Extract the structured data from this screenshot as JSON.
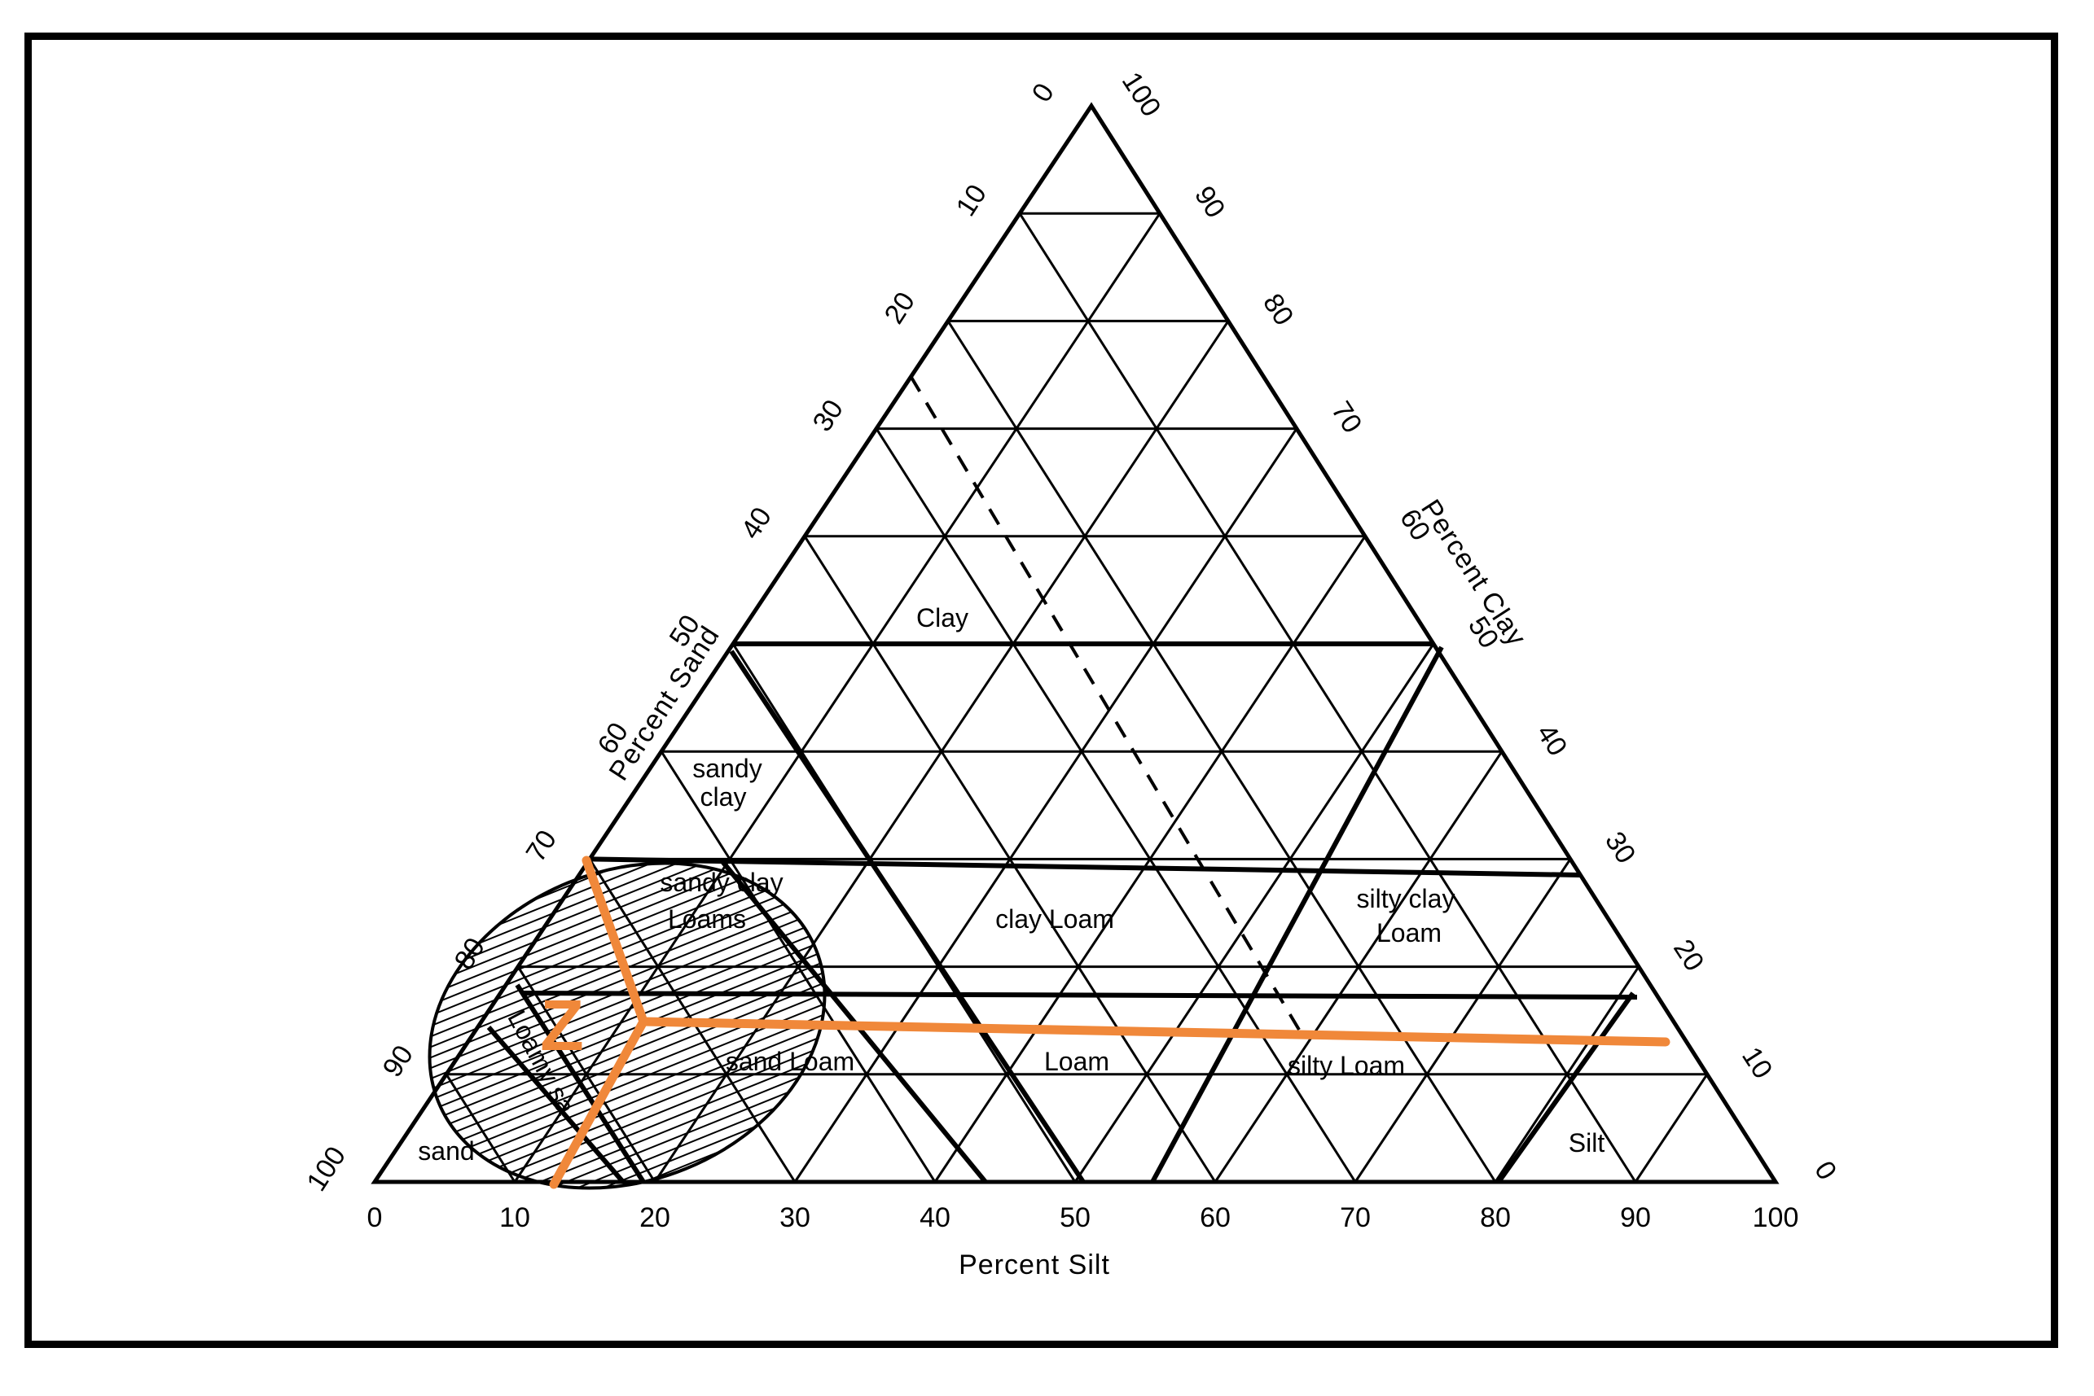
{
  "axes": {
    "sand_label": "Percent Sand",
    "clay_label": "Percent Clay",
    "silt_label": "Percent Silt"
  },
  "ticks": [
    "0",
    "10",
    "20",
    "30",
    "40",
    "50",
    "60",
    "70",
    "80",
    "90",
    "100"
  ],
  "regions": {
    "clay": "Clay",
    "sandy_clay_1": "sandy",
    "sandy_clay_2": "clay",
    "sandy_clay_loam_1": "sandy clay",
    "sandy_clay_loam_2": "Loams",
    "clay_loam": "clay Loam",
    "silty_clay_loam_1": "silty clay",
    "silty_clay_loam_2": "Loam",
    "sand_loam": "sand Loam",
    "loam": "Loam",
    "silty_loam": "silty Loam",
    "silt": "Silt",
    "sand": "sand",
    "loamy_sand": "Loamy sa"
  },
  "marker_label": "Z",
  "colors": {
    "marker": "#f0883a",
    "lines": "#000000"
  }
}
